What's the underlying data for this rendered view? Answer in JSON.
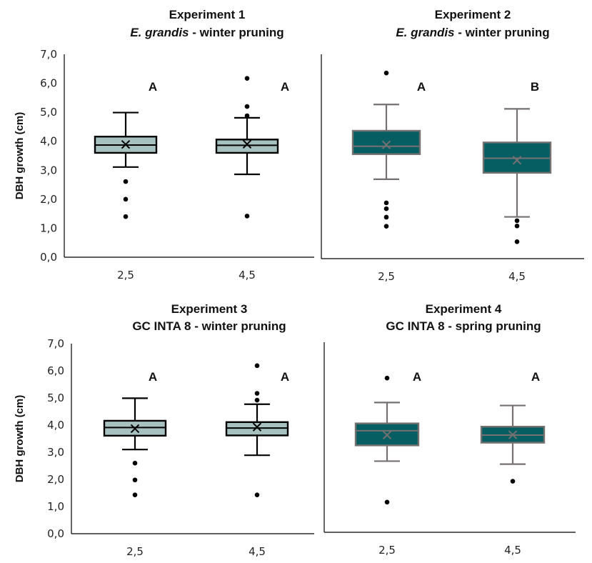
{
  "chart_data": [
    {
      "type": "box",
      "title": "Experiment 1",
      "subtitle_italic": "E. grandis",
      "subtitle_rest": " - winter pruning",
      "ylabel": "DBH growth (cm)",
      "xlabel": "",
      "ylim": [
        0,
        7
      ],
      "yticks": [
        "0,0",
        "1,0",
        "2,0",
        "3,0",
        "4,0",
        "5,0",
        "6,0",
        "7,0"
      ],
      "show_yticks": true,
      "style": "light",
      "categories": [
        "2,5",
        "4,5"
      ],
      "boxes": [
        {
          "whisker_low": 3.11,
          "q1": 3.6,
          "median": 3.87,
          "q3": 4.16,
          "whisker_high": 4.99,
          "mean": 3.89,
          "outliers": [
            2.61,
            2.0,
            1.4
          ],
          "letter": "A"
        },
        {
          "whisker_low": 2.86,
          "q1": 3.6,
          "median": 3.86,
          "q3": 4.06,
          "whisker_high": 4.81,
          "mean": 3.9,
          "outliers": [
            6.17,
            5.2,
            4.88,
            1.42
          ],
          "letter": "A"
        }
      ]
    },
    {
      "type": "box",
      "title": "Experiment 2",
      "subtitle_italic": "E. grandis",
      "subtitle_rest": " - winter pruning",
      "ylabel": "",
      "xlabel": "",
      "ylim": [
        0,
        7
      ],
      "yticks": [],
      "show_yticks": false,
      "style": "dark",
      "categories": [
        "2,5",
        "4,5"
      ],
      "boxes": [
        {
          "whisker_low": 2.72,
          "q1": 3.58,
          "median": 3.85,
          "q3": 4.38,
          "whisker_high": 5.28,
          "mean": 3.9,
          "outliers": [
            6.36,
            1.91,
            1.71,
            1.42,
            1.11
          ],
          "letter": "A"
        },
        {
          "whisker_low": 1.43,
          "q1": 2.94,
          "median": 3.44,
          "q3": 3.98,
          "whisker_high": 5.13,
          "mean": 3.37,
          "outliers": [
            1.3,
            1.12,
            0.58
          ],
          "letter": "B"
        }
      ]
    },
    {
      "type": "box",
      "title": "Experiment 3",
      "subtitle_italic": "",
      "subtitle_rest": "GC INTA 8  - winter pruning",
      "ylabel": "DBH growth (cm)",
      "xlabel": "",
      "ylim": [
        0,
        7
      ],
      "yticks": [
        "0,0",
        "1,0",
        "2,0",
        "3,0",
        "4,0",
        "5,0",
        "6,0",
        "7,0"
      ],
      "show_yticks": true,
      "style": "light",
      "categories": [
        "2,5",
        "4,5"
      ],
      "boxes": [
        {
          "whisker_low": 3.1,
          "q1": 3.61,
          "median": 3.91,
          "q3": 4.16,
          "whisker_high": 4.99,
          "mean": 3.87,
          "outliers": [
            2.6,
            1.98,
            1.43
          ],
          "letter": "A"
        },
        {
          "whisker_low": 2.89,
          "q1": 3.62,
          "median": 3.89,
          "q3": 4.11,
          "whisker_high": 4.77,
          "mean": 3.93,
          "outliers": [
            6.19,
            5.17,
            4.92,
            1.43
          ],
          "letter": "A"
        }
      ]
    },
    {
      "type": "box",
      "title": "Experiment 4",
      "subtitle_italic": "",
      "subtitle_rest": "GC INTA 8 - spring pruning",
      "ylabel": "",
      "xlabel": "",
      "ylim": [
        0,
        7
      ],
      "yticks": [],
      "show_yticks": false,
      "style": "dark",
      "categories": [
        "2,5",
        "4,5"
      ],
      "boxes": [
        {
          "whisker_low": 2.62,
          "q1": 3.2,
          "median": 3.74,
          "q3": 4.01,
          "whisker_high": 4.78,
          "mean": 3.58,
          "outliers": [
            5.68,
            1.11
          ],
          "letter": "A"
        },
        {
          "whisker_low": 2.51,
          "q1": 3.3,
          "median": 3.58,
          "q3": 3.89,
          "whisker_high": 4.67,
          "mean": 3.59,
          "outliers": [
            1.88
          ],
          "letter": "A"
        }
      ]
    }
  ],
  "colors": {
    "light_fill": "#A7C0C0",
    "light_stroke": "#000000",
    "dark_fill": "#075E62",
    "dark_stroke": "#767171",
    "outlier": "#000000",
    "axis": "#000000"
  }
}
